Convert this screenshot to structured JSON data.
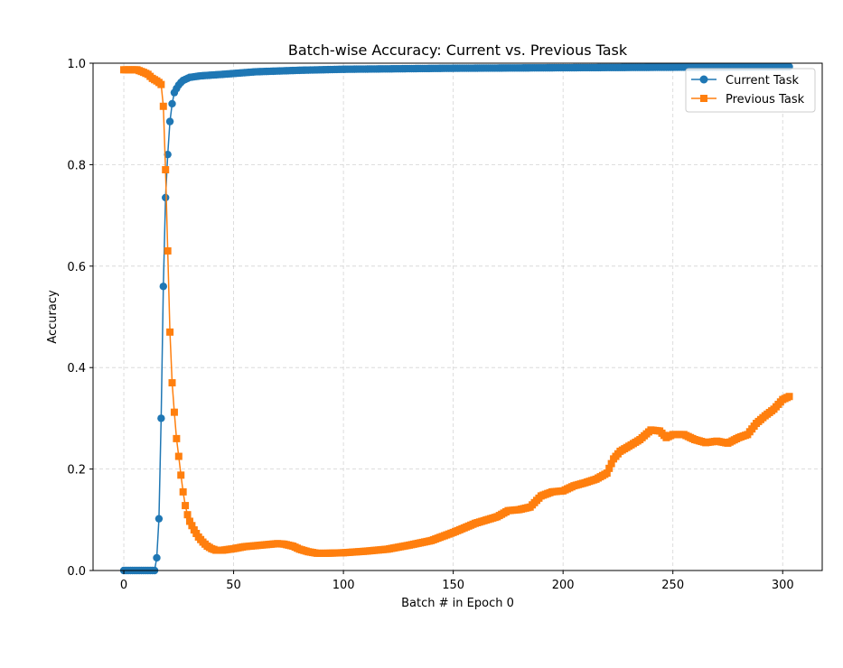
{
  "chart_data": {
    "type": "line",
    "title": "Batch-wise Accuracy: Current vs. Previous Task",
    "xlabel": "Batch # in Epoch 0",
    "ylabel": "Accuracy",
    "xlim": [
      -14,
      318
    ],
    "ylim": [
      0.0,
      1.0
    ],
    "xticks": [
      0,
      50,
      100,
      150,
      200,
      250,
      300
    ],
    "yticks": [
      0.0,
      0.2,
      0.4,
      0.6,
      0.8,
      1.0
    ],
    "xtick_labels": [
      "0",
      "50",
      "100",
      "150",
      "200",
      "250",
      "300"
    ],
    "ytick_labels": [
      "0.0",
      "0.2",
      "0.4",
      "0.6",
      "0.8",
      "1.0"
    ],
    "grid": true,
    "legend_position": "top-right",
    "num_batches": 304,
    "series": [
      {
        "name": "Current Task",
        "color": "#1f77b4",
        "marker": "circle",
        "points": [
          [
            0,
            0.0
          ],
          [
            13,
            0.0
          ],
          [
            14,
            0.0
          ],
          [
            15,
            0.025
          ],
          [
            16,
            0.102
          ],
          [
            17,
            0.3
          ],
          [
            18,
            0.56
          ],
          [
            19,
            0.735
          ],
          [
            20,
            0.82
          ],
          [
            21,
            0.885
          ],
          [
            22,
            0.92
          ],
          [
            23,
            0.942
          ],
          [
            24,
            0.95
          ],
          [
            25,
            0.957
          ],
          [
            26,
            0.962
          ],
          [
            27,
            0.966
          ],
          [
            28,
            0.968
          ],
          [
            30,
            0.972
          ],
          [
            35,
            0.975
          ],
          [
            45,
            0.978
          ],
          [
            60,
            0.983
          ],
          [
            80,
            0.986
          ],
          [
            100,
            0.988
          ],
          [
            150,
            0.99
          ],
          [
            200,
            0.991
          ],
          [
            250,
            0.992
          ],
          [
            303,
            0.993
          ]
        ]
      },
      {
        "name": "Previous Task",
        "color": "#ff7f0e",
        "marker": "square",
        "points": [
          [
            0,
            0.987
          ],
          [
            3,
            0.987
          ],
          [
            6,
            0.987
          ],
          [
            9,
            0.982
          ],
          [
            11,
            0.978
          ],
          [
            13,
            0.97
          ],
          [
            15,
            0.965
          ],
          [
            16,
            0.962
          ],
          [
            17,
            0.958
          ],
          [
            18,
            0.915
          ],
          [
            19,
            0.79
          ],
          [
            20,
            0.63
          ],
          [
            21,
            0.47
          ],
          [
            22,
            0.37
          ],
          [
            23,
            0.312
          ],
          [
            24,
            0.26
          ],
          [
            25,
            0.225
          ],
          [
            26,
            0.188
          ],
          [
            27,
            0.155
          ],
          [
            28,
            0.128
          ],
          [
            29,
            0.11
          ],
          [
            30,
            0.097
          ],
          [
            32,
            0.08
          ],
          [
            34,
            0.066
          ],
          [
            36,
            0.056
          ],
          [
            38,
            0.048
          ],
          [
            40,
            0.043
          ],
          [
            42,
            0.04
          ],
          [
            45,
            0.04
          ],
          [
            50,
            0.043
          ],
          [
            55,
            0.047
          ],
          [
            60,
            0.049
          ],
          [
            65,
            0.051
          ],
          [
            70,
            0.053
          ],
          [
            73,
            0.052
          ],
          [
            77,
            0.048
          ],
          [
            80,
            0.042
          ],
          [
            84,
            0.037
          ],
          [
            88,
            0.034
          ],
          [
            92,
            0.034
          ],
          [
            100,
            0.035
          ],
          [
            110,
            0.038
          ],
          [
            120,
            0.042
          ],
          [
            130,
            0.05
          ],
          [
            140,
            0.059
          ],
          [
            150,
            0.075
          ],
          [
            160,
            0.093
          ],
          [
            170,
            0.106
          ],
          [
            175,
            0.118
          ],
          [
            180,
            0.12
          ],
          [
            185,
            0.125
          ],
          [
            190,
            0.147
          ],
          [
            195,
            0.155
          ],
          [
            200,
            0.157
          ],
          [
            205,
            0.167
          ],
          [
            210,
            0.173
          ],
          [
            215,
            0.18
          ],
          [
            220,
            0.192
          ],
          [
            223,
            0.22
          ],
          [
            226,
            0.235
          ],
          [
            230,
            0.245
          ],
          [
            235,
            0.258
          ],
          [
            240,
            0.277
          ],
          [
            244,
            0.275
          ],
          [
            247,
            0.262
          ],
          [
            250,
            0.268
          ],
          [
            255,
            0.268
          ],
          [
            260,
            0.258
          ],
          [
            265,
            0.252
          ],
          [
            270,
            0.255
          ],
          [
            275,
            0.251
          ],
          [
            280,
            0.262
          ],
          [
            284,
            0.268
          ],
          [
            288,
            0.29
          ],
          [
            292,
            0.305
          ],
          [
            296,
            0.318
          ],
          [
            300,
            0.337
          ],
          [
            303,
            0.343
          ]
        ]
      }
    ]
  }
}
